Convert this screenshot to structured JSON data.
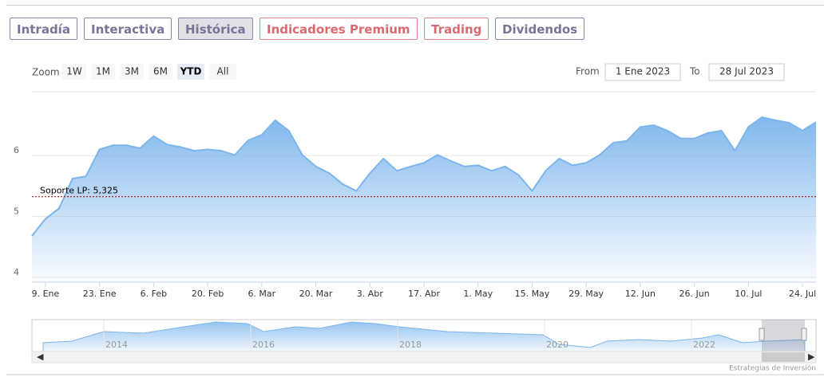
{
  "tabs": [
    {
      "label": "Intradía",
      "style": "normal"
    },
    {
      "label": "Interactiva",
      "style": "normal"
    },
    {
      "label": "Histórica",
      "style": "active"
    },
    {
      "label": "Indicadores Premium",
      "style": "premium"
    },
    {
      "label": "Trading",
      "style": "premium"
    },
    {
      "label": "Dividendos",
      "style": "normal"
    }
  ],
  "range_selector": {
    "zoom_label": "Zoom",
    "buttons": [
      "1W",
      "1M",
      "3M",
      "6M",
      "YTD",
      "All"
    ],
    "selected": 4,
    "from_label": "From",
    "from": "1 Ene 2023",
    "to_label": "To",
    "to": "28 Jul 2023"
  },
  "chart_data": {
    "type": "area",
    "color": "#7cb5ec",
    "categories": [
      null,
      "9. Ene",
      null,
      null,
      null,
      "23. Ene",
      null,
      null,
      null,
      "6. Feb",
      null,
      null,
      null,
      "20. Feb",
      null,
      null,
      null,
      "6. Mar",
      null,
      null,
      null,
      "20. Mar",
      null,
      null,
      null,
      "3. Abr",
      null,
      null,
      null,
      "17. Abr",
      null,
      null,
      null,
      "1. May",
      null,
      null,
      null,
      "15. May",
      null,
      null,
      null,
      "29. May",
      null,
      null,
      null,
      "12. Jun",
      null,
      null,
      null,
      "26. Jun",
      null,
      null,
      null,
      "10. Jul",
      null,
      null,
      null,
      "24. Jul",
      null
    ],
    "values": [
      4.68,
      4.96,
      5.13,
      5.62,
      5.66,
      6.1,
      6.17,
      6.17,
      6.12,
      6.32,
      6.18,
      6.14,
      6.08,
      6.1,
      6.08,
      6.01,
      6.25,
      6.34,
      6.58,
      6.41,
      6.01,
      5.82,
      5.71,
      5.53,
      5.42,
      5.71,
      5.95,
      5.75,
      5.82,
      5.88,
      6.01,
      5.91,
      5.82,
      5.84,
      5.75,
      5.82,
      5.68,
      5.42,
      5.75,
      5.95,
      5.84,
      5.88,
      6.01,
      6.21,
      6.24,
      6.47,
      6.5,
      6.41,
      6.28,
      6.28,
      6.37,
      6.41,
      6.08,
      6.47,
      6.63,
      6.58,
      6.54,
      6.41,
      6.55
    ],
    "ylim": [
      3.92,
      7.05
    ],
    "yticks": [
      4,
      5,
      6
    ],
    "grid": true,
    "plot_lines": [
      {
        "value": 5.325,
        "label": "Soporte LP: 5,325",
        "color": "#8b0000"
      }
    ]
  },
  "navigator": {
    "labels": [
      "2014",
      "2016",
      "2018",
      "2020",
      "2022"
    ]
  },
  "credits": "Estrategias de Inversión"
}
